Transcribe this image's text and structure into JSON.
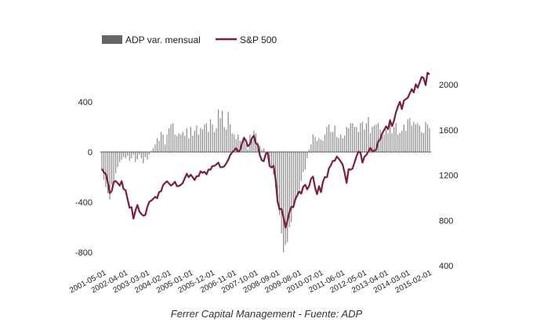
{
  "chart_data": {
    "type": "bar+line",
    "title": "",
    "footer": "Ferrer Capital Management - Fuente: ADP",
    "legend": {
      "placement": "top-left",
      "entries": [
        "ADP var. mensual",
        "S&P 500"
      ]
    },
    "start_month": "2001-05",
    "frequency": "monthly",
    "x_tick_labels": [
      "2001-05-01",
      "2002-04-01",
      "2003-03-01",
      "2004-02-01",
      "2005-01-01",
      "2005-12-01",
      "2006-11-01",
      "2007-10-01",
      "2008-09-01",
      "2009-08-01",
      "2010-07-01",
      "2011-06-01",
      "2012-05-01",
      "2013-04-01",
      "2014-03-01",
      "2015-02-01"
    ],
    "left_axis": {
      "ticks": [
        "400",
        "0",
        "-400",
        "-800"
      ],
      "tick_values": [
        400,
        0,
        -400,
        -800
      ],
      "range": [
        -880,
        780
      ]
    },
    "right_axis": {
      "ticks": [
        "2000",
        "1600",
        "1200",
        "800",
        "400"
      ],
      "tick_values": [
        2000,
        1600,
        1200,
        800,
        400
      ],
      "range": [
        400,
        2000
      ]
    },
    "colors": {
      "bars": "#8a8a8a",
      "legend_bar": "#666666",
      "line": "#7b1c45",
      "axis": "#555555"
    },
    "series": [
      {
        "name": "ADP var. mensual",
        "axis": "left",
        "kind": "bar",
        "values": [
          -150,
          -220,
          -280,
          -330,
          -380,
          -260,
          -240,
          -170,
          -120,
          -80,
          -60,
          -40,
          -50,
          -30,
          -70,
          -50,
          -20,
          -80,
          -60,
          -20,
          -50,
          -90,
          -40,
          -60,
          -20,
          10,
          30,
          60,
          110,
          90,
          160,
          140,
          60,
          140,
          190,
          220,
          230,
          140,
          130,
          150,
          140,
          160,
          130,
          190,
          110,
          200,
          130,
          170,
          210,
          140,
          190,
          180,
          220,
          230,
          160,
          260,
          220,
          160,
          190,
          340,
          270,
          330,
          200,
          180,
          320,
          220,
          150,
          140,
          100,
          140,
          90,
          70,
          120,
          60,
          20,
          140,
          90,
          170,
          150,
          80,
          50,
          20,
          30,
          -40,
          -20,
          -80,
          -120,
          -180,
          -280,
          -400,
          -500,
          -650,
          -800,
          -740,
          -720,
          -600,
          -560,
          -450,
          -390,
          -350,
          -300,
          -230,
          -160,
          -140,
          -50,
          20,
          60,
          140,
          120,
          90,
          110,
          100,
          90,
          140,
          200,
          220,
          160,
          160,
          210,
          120,
          110,
          140,
          110,
          130,
          200,
          190,
          230,
          230,
          200,
          200,
          160,
          230,
          240,
          180,
          230,
          280,
          150,
          200,
          210,
          220,
          230,
          180,
          160,
          140,
          180,
          150,
          230,
          150,
          200,
          230,
          140,
          150,
          170,
          220,
          170,
          260,
          270,
          210,
          240,
          220,
          230,
          210,
          160,
          150,
          240,
          220,
          190
        ]
      },
      {
        "name": "S&P 500",
        "axis": "right",
        "kind": "line",
        "values": [
          1256,
          1224,
          1211,
          1134,
          1041,
          1060,
          1139,
          1148,
          1130,
          1107,
          1147,
          1077,
          1067,
          990,
          912,
          916,
          815,
          886,
          936,
          880,
          856,
          841,
          848,
          917,
          964,
          975,
          990,
          1008,
          996,
          1051,
          1058,
          1112,
          1131,
          1145,
          1126,
          1107,
          1121,
          1141,
          1102,
          1104,
          1115,
          1130,
          1174,
          1212,
          1181,
          1204,
          1181,
          1157,
          1192,
          1191,
          1234,
          1220,
          1229,
          1207,
          1249,
          1248,
          1280,
          1281,
          1295,
          1311,
          1270,
          1270,
          1277,
          1304,
          1336,
          1378,
          1401,
          1418,
          1438,
          1407,
          1421,
          1482,
          1531,
          1503,
          1455,
          1474,
          1527,
          1549,
          1481,
          1468,
          1379,
          1331,
          1323,
          1386,
          1400,
          1280,
          1267,
          1283,
          1165,
          969,
          896,
          903,
          826,
          735,
          798,
          873,
          919,
          919,
          987,
          1021,
          1057,
          1036,
          1096,
          1115,
          1074,
          1104,
          1169,
          1187,
          1089,
          1031,
          1102,
          1049,
          1141,
          1183,
          1181,
          1258,
          1286,
          1327,
          1326,
          1364,
          1345,
          1321,
          1292,
          1219,
          1131,
          1253,
          1247,
          1258,
          1312,
          1366,
          1408,
          1398,
          1310,
          1362,
          1379,
          1407,
          1441,
          1412,
          1416,
          1426,
          1498,
          1515,
          1569,
          1598,
          1631,
          1606,
          1686,
          1633,
          1682,
          1757,
          1806,
          1848,
          1783,
          1859,
          1872,
          1884,
          1924,
          1960,
          1931,
          2003,
          1972,
          2018,
          2068,
          2059,
          1995,
          2105,
          2090
        ]
      }
    ]
  }
}
